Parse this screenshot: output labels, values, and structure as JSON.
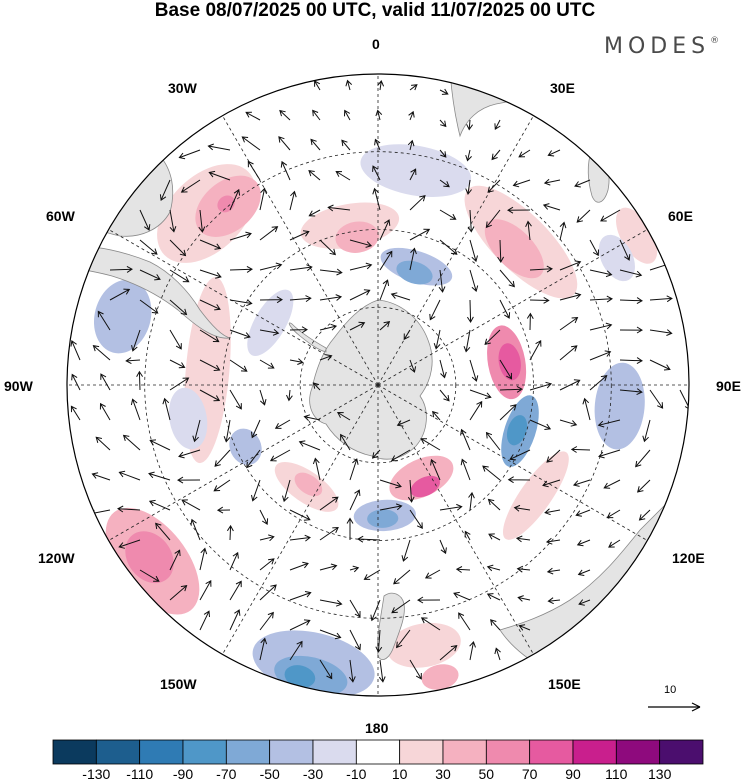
{
  "title": "Base 08/07/2025 00 UTC, valid 11/07/2025 00 UTC",
  "brand": "MODES",
  "brand_mark": "®",
  "longitude_labels": {
    "top": "0",
    "bottom": "180",
    "left": "90W",
    "right": "90E",
    "nw1": "30W",
    "nw2": "60W",
    "sw1": "120W",
    "sw2": "150W",
    "ne1": "30E",
    "ne2": "60E",
    "se1": "120E",
    "se2": "150E"
  },
  "vector_scale": {
    "label": "10",
    "icon": "reference-arrow-icon"
  },
  "colors": {
    "land": "#e4e4e4",
    "coast": "#8a8a8a",
    "grid": "#222222",
    "arrow": "#111111"
  },
  "colorbar": {
    "ticks": [
      "-130",
      "-110",
      "-90",
      "-70",
      "-50",
      "-30",
      "-10",
      "10",
      "30",
      "50",
      "70",
      "90",
      "110",
      "130"
    ],
    "colors": [
      "#0b3a5e",
      "#1d5e8e",
      "#2f7bb4",
      "#4f97c8",
      "#7fa9d6",
      "#b3c0e3",
      "#dadbee",
      "#ffffff",
      "#f7d6d8",
      "#f5b1c0",
      "#ef8aae",
      "#e65aa0",
      "#c91f8d",
      "#8e0a7d",
      "#4b0e6e"
    ]
  },
  "anomaly_blobs": [
    {
      "v": 25,
      "lon": -45,
      "r": 0.78,
      "a": 0.19,
      "b": 0.12
    },
    {
      "v": 48,
      "lon": -40,
      "r": 0.75,
      "a": 0.12,
      "b": 0.08
    },
    {
      "v": 70,
      "lon": -40,
      "r": 0.76,
      "a": 0.03,
      "b": 0.025
    },
    {
      "v": 25,
      "lon": -10,
      "r": 0.52,
      "a": 0.16,
      "b": 0.07
    },
    {
      "v": 40,
      "lon": -8,
      "r": 0.48,
      "a": 0.07,
      "b": 0.05
    },
    {
      "v": -25,
      "lon": 10,
      "r": 0.7,
      "a": 0.18,
      "b": 0.08
    },
    {
      "v": -45,
      "lon": 18,
      "r": 0.4,
      "a": 0.12,
      "b": 0.05
    },
    {
      "v": -55,
      "lon": 18,
      "r": 0.38,
      "a": 0.06,
      "b": 0.035
    },
    {
      "v": 30,
      "lon": 45,
      "r": 0.65,
      "a": 0.24,
      "b": 0.09
    },
    {
      "v": 48,
      "lon": 45,
      "r": 0.62,
      "a": 0.12,
      "b": 0.06
    },
    {
      "v": 55,
      "lon": 80,
      "r": 0.42,
      "a": 0.12,
      "b": 0.06
    },
    {
      "v": 75,
      "lon": 80,
      "r": 0.43,
      "a": 0.06,
      "b": 0.035
    },
    {
      "v": -30,
      "lon": 95,
      "r": 0.78,
      "a": 0.14,
      "b": 0.08
    },
    {
      "v": -60,
      "lon": 108,
      "r": 0.48,
      "a": 0.12,
      "b": 0.05
    },
    {
      "v": -75,
      "lon": 108,
      "r": 0.47,
      "a": 0.05,
      "b": 0.03
    },
    {
      "v": 50,
      "lon": 155,
      "r": 0.33,
      "a": 0.11,
      "b": 0.06
    },
    {
      "v": 80,
      "lon": 155,
      "r": 0.36,
      "a": 0.05,
      "b": 0.03
    },
    {
      "v": 28,
      "lon": 125,
      "r": 0.62,
      "a": 0.17,
      "b": 0.05
    },
    {
      "v": -35,
      "lon": 177,
      "r": 0.42,
      "a": 0.1,
      "b": 0.05
    },
    {
      "v": -60,
      "lon": 178,
      "r": 0.43,
      "a": 0.05,
      "b": 0.03
    },
    {
      "v": 30,
      "lon": 170,
      "r": 0.85,
      "a": 0.12,
      "b": 0.07
    },
    {
      "v": 40,
      "lon": 168,
      "r": 0.96,
      "a": 0.06,
      "b": 0.04
    },
    {
      "v": -35,
      "lon": -167,
      "r": 0.92,
      "a": 0.2,
      "b": 0.1
    },
    {
      "v": -60,
      "lon": -167,
      "r": 0.96,
      "a": 0.12,
      "b": 0.06
    },
    {
      "v": -80,
      "lon": -165,
      "r": 0.97,
      "a": 0.05,
      "b": 0.035
    },
    {
      "v": 40,
      "lon": -128,
      "r": 0.92,
      "a": 0.2,
      "b": 0.11
    },
    {
      "v": 60,
      "lon": -127,
      "r": 0.92,
      "a": 0.09,
      "b": 0.07
    },
    {
      "v": 30,
      "lon": -145,
      "r": 0.4,
      "a": 0.12,
      "b": 0.05
    },
    {
      "v": 45,
      "lon": -145,
      "r": 0.39,
      "a": 0.05,
      "b": 0.03
    },
    {
      "v": -35,
      "lon": -115,
      "r": 0.47,
      "a": 0.06,
      "b": 0.05
    },
    {
      "v": -30,
      "lon": -75,
      "r": 0.85,
      "a": 0.12,
      "b": 0.09
    },
    {
      "v": 20,
      "lon": -85,
      "r": 0.55,
      "a": 0.3,
      "b": 0.07
    },
    {
      "v": -25,
      "lon": -100,
      "r": 0.62,
      "a": 0.1,
      "b": 0.06
    },
    {
      "v": -25,
      "lon": -60,
      "r": 0.4,
      "a": 0.12,
      "b": 0.05
    },
    {
      "v": 25,
      "lon": 60,
      "r": 0.96,
      "a": 0.1,
      "b": 0.05
    },
    {
      "v": -25,
      "lon": 62,
      "r": 0.87,
      "a": 0.08,
      "b": 0.05
    }
  ]
}
